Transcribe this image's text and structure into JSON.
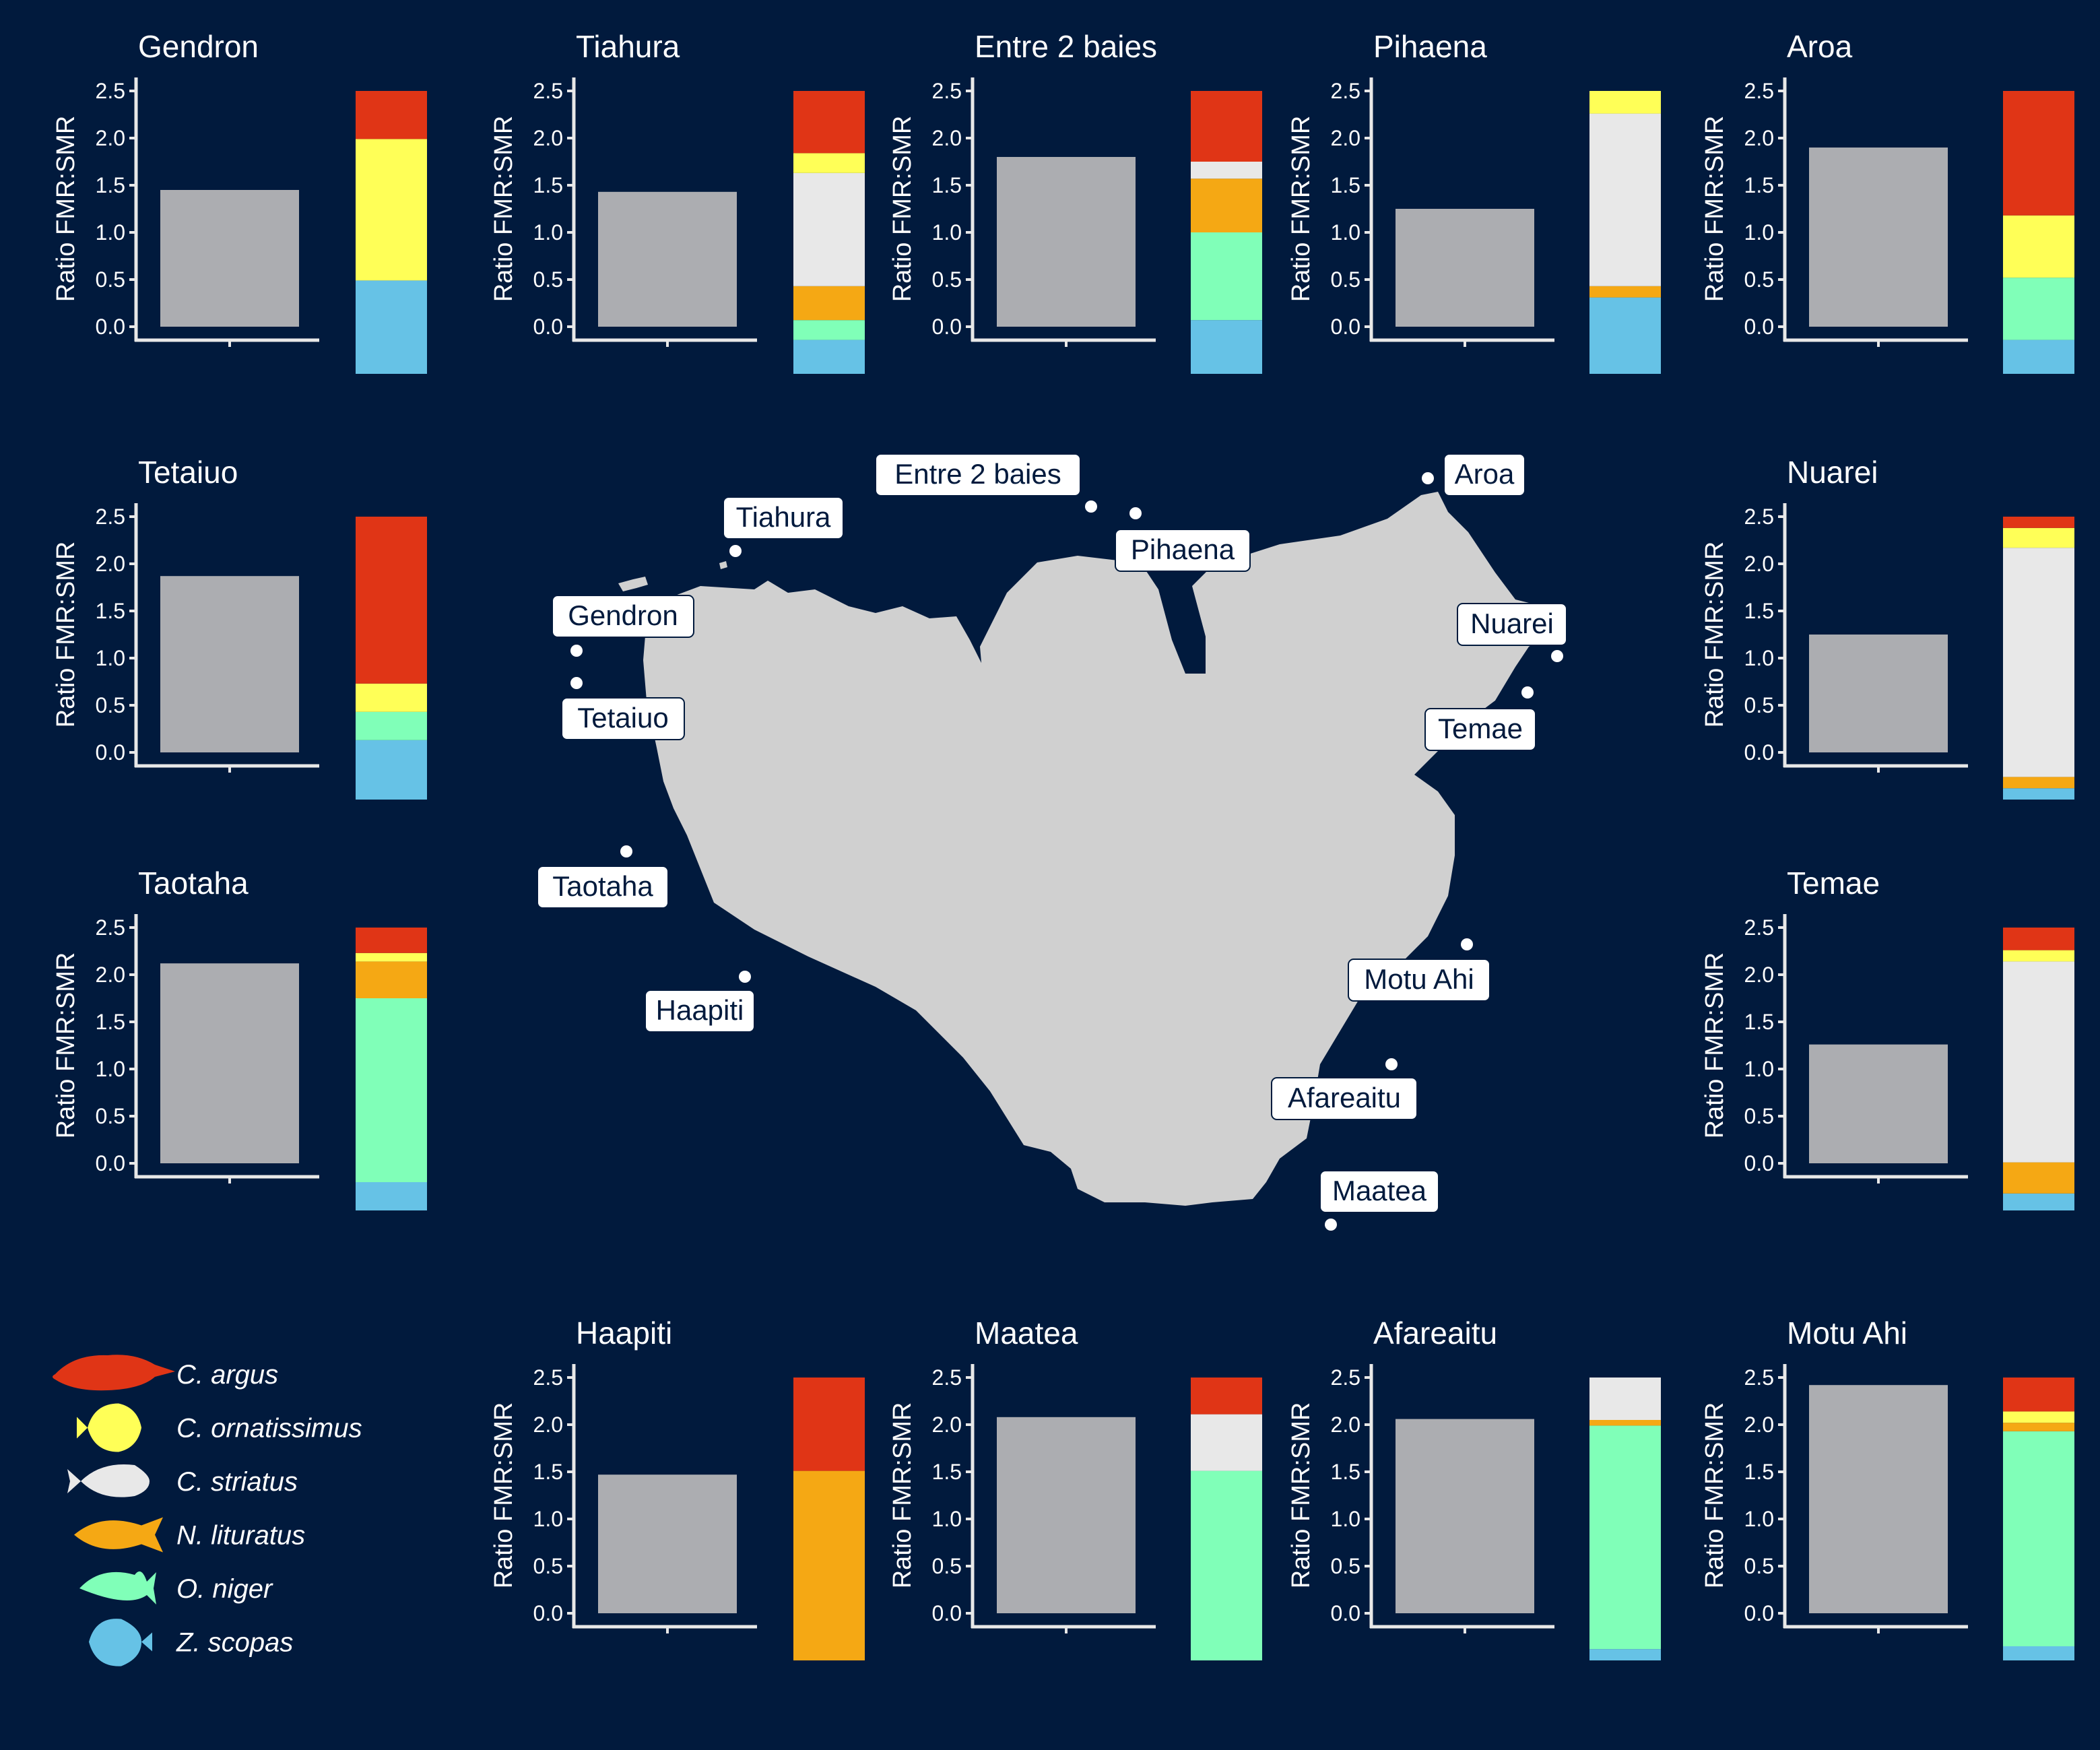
{
  "colors": {
    "background": "#011A3D",
    "axis": "#E8E8E8",
    "text": "#FFFFFF",
    "ratio_bar": "#ACADB1",
    "island": "#D0D0D0",
    "label_box_fill": "#FFFFFF",
    "label_box_text": "#011A3D"
  },
  "legend": {
    "species": [
      {
        "name": "C. argus",
        "color": "#E03516",
        "icon": "grouper-silhouette-icon"
      },
      {
        "name": "C. ornatissimus",
        "color": "#FFFF57",
        "icon": "butterflyfish-silhouette-icon"
      },
      {
        "name": "C. striatus",
        "color": "#E8E8E8",
        "icon": "surgeonfish-silhouette-icon"
      },
      {
        "name": "N. lituratus",
        "color": "#F5A814",
        "icon": "unicornfish-silhouette-icon"
      },
      {
        "name": "O. niger",
        "color": "#80FFB8",
        "icon": "triggerfish-silhouette-icon"
      },
      {
        "name": "Z. scopas",
        "color": "#66C2E6",
        "icon": "tang-silhouette-icon"
      }
    ]
  },
  "map": {
    "labels": [
      "Entre 2 baies",
      "Aroa",
      "Tiahura",
      "Pihaena",
      "Gendron",
      "Nuarei",
      "Tetaiuo",
      "Temae",
      "Taotaha",
      "Haapiti",
      "Motu Ahi",
      "Afareaitu",
      "Maatea"
    ]
  },
  "chart_data": [
    {
      "type": "bar",
      "title": "Gendron",
      "ylabel": "Ratio FMR:SMR",
      "yticks": [
        "0.0",
        "0.5",
        "1.0",
        "1.5",
        "2.0",
        "2.5"
      ],
      "ylim": [
        0,
        2.5
      ],
      "value": 1.45,
      "composition": [
        {
          "species": "Z. scopas",
          "share": 0.33
        },
        {
          "species": "C. ornatissimus",
          "share": 0.5
        },
        {
          "species": "C. argus",
          "share": 0.17
        }
      ]
    },
    {
      "type": "bar",
      "title": "Tiahura",
      "ylabel": "Ratio FMR:SMR",
      "yticks": [
        "0.0",
        "0.5",
        "1.0",
        "1.5",
        "2.0",
        "2.5"
      ],
      "ylim": [
        0,
        2.5
      ],
      "value": 1.43,
      "composition": [
        {
          "species": "Z. scopas",
          "share": 0.12
        },
        {
          "species": "O. niger",
          "share": 0.07
        },
        {
          "species": "N. lituratus",
          "share": 0.12
        },
        {
          "species": "C. striatus",
          "share": 0.4
        },
        {
          "species": "C. ornatissimus",
          "share": 0.07
        },
        {
          "species": "C. argus",
          "share": 0.22
        }
      ]
    },
    {
      "type": "bar",
      "title": "Entre 2 baies",
      "ylabel": "Ratio FMR:SMR",
      "yticks": [
        "0.0",
        "0.5",
        "1.0",
        "1.5",
        "2.0",
        "2.5"
      ],
      "ylim": [
        0,
        2.5
      ],
      "value": 1.8,
      "composition": [
        {
          "species": "Z. scopas",
          "share": 0.19
        },
        {
          "species": "O. niger",
          "share": 0.31
        },
        {
          "species": "N. lituratus",
          "share": 0.19
        },
        {
          "species": "C. striatus",
          "share": 0.06
        },
        {
          "species": "C. argus",
          "share": 0.25
        }
      ]
    },
    {
      "type": "bar",
      "title": "Pihaena",
      "ylabel": "Ratio FMR:SMR",
      "yticks": [
        "0.0",
        "0.5",
        "1.0",
        "1.5",
        "2.0",
        "2.5"
      ],
      "ylim": [
        0,
        2.5
      ],
      "value": 1.25,
      "composition": [
        {
          "species": "Z. scopas",
          "share": 0.27
        },
        {
          "species": "N. lituratus",
          "share": 0.04
        },
        {
          "species": "C. striatus",
          "share": 0.61
        },
        {
          "species": "C. ornatissimus",
          "share": 0.08
        }
      ]
    },
    {
      "type": "bar",
      "title": "Aroa",
      "ylabel": "Ratio FMR:SMR",
      "yticks": [
        "0.0",
        "0.5",
        "1.0",
        "1.5",
        "2.0",
        "2.5"
      ],
      "ylim": [
        0,
        2.5
      ],
      "value": 1.9,
      "composition": [
        {
          "species": "Z. scopas",
          "share": 0.12
        },
        {
          "species": "O. niger",
          "share": 0.22
        },
        {
          "species": "C. ornatissimus",
          "share": 0.22
        },
        {
          "species": "C. argus",
          "share": 0.44
        }
      ]
    },
    {
      "type": "bar",
      "title": "Tetaiuo",
      "ylabel": "Ratio FMR:SMR",
      "yticks": [
        "0.0",
        "0.5",
        "1.0",
        "1.5",
        "2.0",
        "2.5"
      ],
      "ylim": [
        0,
        2.5
      ],
      "value": 1.87,
      "composition": [
        {
          "species": "Z. scopas",
          "share": 0.21
        },
        {
          "species": "O. niger",
          "share": 0.1
        },
        {
          "species": "C. ornatissimus",
          "share": 0.1
        },
        {
          "species": "C. argus",
          "share": 0.59
        }
      ]
    },
    {
      "type": "bar",
      "title": "Nuarei",
      "ylabel": "Ratio FMR:SMR",
      "yticks": [
        "0.0",
        "0.5",
        "1.0",
        "1.5",
        "2.0",
        "2.5"
      ],
      "ylim": [
        0,
        2.5
      ],
      "value": 1.25,
      "composition": [
        {
          "species": "Z. scopas",
          "share": 0.04
        },
        {
          "species": "N. lituratus",
          "share": 0.04
        },
        {
          "species": "C. striatus",
          "share": 0.81
        },
        {
          "species": "C. ornatissimus",
          "share": 0.07
        },
        {
          "species": "C. argus",
          "share": 0.04
        }
      ]
    },
    {
      "type": "bar",
      "title": "Taotaha",
      "ylabel": "Ratio FMR:SMR",
      "yticks": [
        "0.0",
        "0.5",
        "1.0",
        "1.5",
        "2.0",
        "2.5"
      ],
      "ylim": [
        0,
        2.5
      ],
      "value": 2.12,
      "composition": [
        {
          "species": "Z. scopas",
          "share": 0.1
        },
        {
          "species": "O. niger",
          "share": 0.65
        },
        {
          "species": "N. lituratus",
          "share": 0.13
        },
        {
          "species": "C. ornatissimus",
          "share": 0.03
        },
        {
          "species": "C. argus",
          "share": 0.09
        }
      ]
    },
    {
      "type": "bar",
      "title": "Temae",
      "ylabel": "Ratio FMR:SMR",
      "yticks": [
        "0.0",
        "0.5",
        "1.0",
        "1.5",
        "2.0",
        "2.5"
      ],
      "ylim": [
        0,
        2.5
      ],
      "value": 1.26,
      "composition": [
        {
          "species": "Z. scopas",
          "share": 0.06
        },
        {
          "species": "N. lituratus",
          "share": 0.11
        },
        {
          "species": "C. striatus",
          "share": 0.71
        },
        {
          "species": "C. ornatissimus",
          "share": 0.04
        },
        {
          "species": "C. argus",
          "share": 0.08
        }
      ]
    },
    {
      "type": "bar",
      "title": "Haapiti",
      "ylabel": "Ratio FMR:SMR",
      "yticks": [
        "0.0",
        "0.5",
        "1.0",
        "1.5",
        "2.0",
        "2.5"
      ],
      "ylim": [
        0,
        2.5
      ],
      "value": 1.47,
      "composition": [
        {
          "species": "N. lituratus",
          "share": 0.67
        },
        {
          "species": "C. argus",
          "share": 0.33
        }
      ]
    },
    {
      "type": "bar",
      "title": "Maatea",
      "ylabel": "Ratio FMR:SMR",
      "yticks": [
        "0.0",
        "0.5",
        "1.0",
        "1.5",
        "2.0",
        "2.5"
      ],
      "ylim": [
        0,
        2.5
      ],
      "value": 2.08,
      "composition": [
        {
          "species": "O. niger",
          "share": 0.67
        },
        {
          "species": "C. striatus",
          "share": 0.2
        },
        {
          "species": "C. argus",
          "share": 0.13
        }
      ]
    },
    {
      "type": "bar",
      "title": "Afareaitu",
      "ylabel": "Ratio FMR:SMR",
      "yticks": [
        "0.0",
        "0.5",
        "1.0",
        "1.5",
        "2.0",
        "2.5"
      ],
      "ylim": [
        0,
        2.5
      ],
      "value": 2.06,
      "composition": [
        {
          "species": "Z. scopas",
          "share": 0.04
        },
        {
          "species": "O. niger",
          "share": 0.79
        },
        {
          "species": "N. lituratus",
          "share": 0.02
        },
        {
          "species": "C. striatus",
          "share": 0.15
        }
      ]
    },
    {
      "type": "bar",
      "title": "Motu Ahi",
      "ylabel": "Ratio FMR:SMR",
      "yticks": [
        "0.0",
        "0.5",
        "1.0",
        "1.5",
        "2.0",
        "2.5"
      ],
      "ylim": [
        0,
        2.5
      ],
      "value": 2.42,
      "composition": [
        {
          "species": "Z. scopas",
          "share": 0.05
        },
        {
          "species": "O. niger",
          "share": 0.76
        },
        {
          "species": "N. lituratus",
          "share": 0.03
        },
        {
          "species": "C. ornatissimus",
          "share": 0.04
        },
        {
          "species": "C. argus",
          "share": 0.12
        }
      ]
    }
  ]
}
